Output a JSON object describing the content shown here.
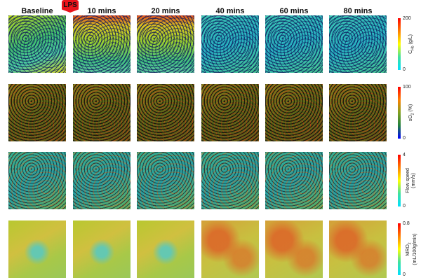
{
  "marker": {
    "label": "LPS",
    "color": "#e8141c"
  },
  "columns": [
    "Baseline",
    "10 mins",
    "20 mins",
    "40 mins",
    "60 mins",
    "80 mins"
  ],
  "rows": [
    {
      "name": "hemoglobin-concentration",
      "max": "200",
      "min": "0",
      "label_main": "C",
      "label_sub": "Hb",
      "label_tail": " (g/L)",
      "colormap": [
        "#00e0ff",
        "#40e0a0",
        "#ffff00",
        "#ff8000",
        "#ff0000"
      ]
    },
    {
      "name": "oxygen-saturation",
      "max": "100",
      "min": "0",
      "label_main": "sO",
      "label_sub": "2",
      "label_tail": " (%)",
      "colormap": [
        "#0000ff",
        "#208040",
        "#80a020",
        "#ff8000",
        "#ff0000"
      ]
    },
    {
      "name": "flow-speed",
      "max": "4",
      "min": "0",
      "label_main": "Flow speed",
      "label_line2": "(mm/s)",
      "colormap": [
        "#00e0ff",
        "#40e0a0",
        "#ffff00",
        "#ff8000",
        "#ff0000"
      ]
    },
    {
      "name": "oxygen-metabolic-rate",
      "max": "0.8",
      "min": "0",
      "label_main": "MRO",
      "label_sub": "2",
      "label_line2": "(mL/100g/min)",
      "colormap": [
        "#00e0ff",
        "#40e0a0",
        "#ffff00",
        "#ff8000",
        "#ff0000"
      ]
    }
  ]
}
